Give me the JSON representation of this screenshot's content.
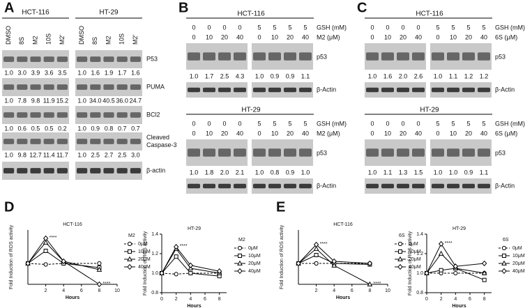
{
  "panel_labels": [
    "A",
    "B",
    "C",
    "D",
    "E"
  ],
  "panel_a": {
    "groups": [
      {
        "title": "HCT-116",
        "lanes": [
          "DMSO",
          "8S",
          "M2",
          "10S",
          "M2'"
        ]
      },
      {
        "title": "HT-29",
        "lanes": [
          "DMSO",
          "8S",
          "M2",
          "10S",
          "M2'"
        ]
      }
    ],
    "rows": [
      {
        "label": [
          "P53"
        ],
        "values": [
          [
            "1.0",
            "3.0",
            "3.9",
            "3.6",
            "3.5"
          ],
          [
            "1.0",
            "1.6",
            "1.9",
            "1.7",
            "1.6"
          ]
        ]
      },
      {
        "label": [
          "PUMA"
        ],
        "values": [
          [
            "1.0",
            "7.8",
            "9.8",
            "11.9",
            "15.2"
          ],
          [
            "1.0",
            "34.0",
            "40.5",
            "36.0",
            "24.7"
          ]
        ]
      },
      {
        "label": [
          "BCl2"
        ],
        "values": [
          [
            "1.0",
            "0.6",
            "0.5",
            "0.5",
            "0.2"
          ],
          [
            "1.0",
            "0.9",
            "0.8",
            "0.7",
            "0.7"
          ]
        ]
      },
      {
        "label": [
          "Cleaved",
          "Caspase-3"
        ],
        "values": [
          [
            "1.0",
            "9.8",
            "12.7",
            "11.4",
            "11.7"
          ],
          [
            "1.0",
            "2.5",
            "2.7",
            "2.5",
            "3.0"
          ]
        ]
      },
      {
        "label": [
          "β-actin"
        ]
      }
    ]
  },
  "panel_b": {
    "row_labels": [
      "GSH (mM)",
      "M2 (μM)",
      "p53",
      "β-Actin"
    ],
    "blocks": [
      {
        "title": "HCT-116",
        "gsh": [
          "0",
          "0",
          "0",
          "0",
          "5",
          "5",
          "5",
          "5"
        ],
        "treat": [
          "0",
          "10",
          "20",
          "40",
          "0",
          "10",
          "20",
          "40"
        ],
        "values": [
          "1.0",
          "1.7",
          "2.5",
          "4.3",
          "1.0",
          "0.9",
          "0.9",
          "1.1"
        ]
      },
      {
        "title": "HT-29",
        "gsh": [
          "0",
          "0",
          "0",
          "0",
          "5",
          "5",
          "5",
          "5"
        ],
        "treat": [
          "0",
          "10",
          "20",
          "40",
          "0",
          "10",
          "20",
          "40"
        ],
        "values": [
          "1.0",
          "1.8",
          "2.0",
          "2.1",
          "1.0",
          "0.8",
          "0.9",
          "1.0"
        ]
      }
    ]
  },
  "panel_c": {
    "row_labels": [
      "GSH (mM)",
      "6S (μM)",
      "p53",
      "β-Actin"
    ],
    "blocks": [
      {
        "title": "HCT-116",
        "gsh": [
          "0",
          "0",
          "0",
          "0",
          "5",
          "5",
          "5",
          "5"
        ],
        "treat": [
          "0",
          "10",
          "20",
          "40",
          "0",
          "10",
          "20",
          "40"
        ],
        "values": [
          "1.0",
          "1.6",
          "2.0",
          "2.6",
          "1.0",
          "1.1",
          "1.2",
          "1.2"
        ]
      },
      {
        "title": "HT-29",
        "gsh": [
          "0",
          "0",
          "0",
          "0",
          "5",
          "5",
          "5",
          "5"
        ],
        "treat": [
          "0",
          "10",
          "20",
          "40",
          "0",
          "10",
          "20",
          "40"
        ],
        "values": [
          "1.0",
          "1.1",
          "1.3",
          "1.5",
          "1.0",
          "1.0",
          "0.9",
          "1.1"
        ]
      }
    ]
  },
  "chart_data": [
    {
      "type": "line",
      "title": "HCT-116",
      "legend_title": "M2",
      "xlabel": "Hours",
      "ylabel": "Fold Induction of ROS activity",
      "x": [
        0,
        2,
        4,
        8
      ],
      "xlim": [
        0,
        10
      ],
      "xticks": [
        2,
        4,
        6,
        8,
        10
      ],
      "ylim": [
        0,
        2.6
      ],
      "series": [
        {
          "name": "0μM",
          "color": "#000000",
          "marker": "circle",
          "dash": true,
          "values": [
            1.0,
            0.95,
            1.0,
            1.0
          ]
        },
        {
          "name": "10μM",
          "color": "#000000",
          "marker": "square",
          "dash": false,
          "values": [
            1.0,
            1.6,
            1.0,
            0.8
          ]
        },
        {
          "name": "20μM",
          "color": "#000000",
          "marker": "triangle",
          "dash": false,
          "values": [
            1.0,
            2.0,
            1.1,
            0.7
          ]
        },
        {
          "name": "40μM",
          "color": "#000000",
          "marker": "diamond",
          "dash": false,
          "values": [
            1.0,
            2.2,
            1.1,
            0.0
          ]
        }
      ],
      "annotations": [
        "****",
        "****"
      ]
    },
    {
      "type": "line",
      "title": "HT-29",
      "legend_title": "M2",
      "xlabel": "Hours",
      "ylabel": "Fold Induction of ROS activity",
      "x": [
        0,
        2,
        4,
        8
      ],
      "xlim": [
        0,
        9
      ],
      "xticks": [
        0,
        2,
        4,
        6,
        8
      ],
      "ylim": [
        0.8,
        1.4
      ],
      "yticks": [
        0.8,
        {
          "value": 1,
          "label": "1.0"
        },
        1.2,
        1.4
      ],
      "series": [
        {
          "name": "0μM",
          "color": "#000000",
          "marker": "circle",
          "dash": true,
          "values": [
            1.0,
            0.99,
            1.0,
            1.0
          ]
        },
        {
          "name": "10μM",
          "color": "#000000",
          "marker": "square",
          "dash": false,
          "values": [
            1.0,
            1.17,
            1.0,
            0.97
          ]
        },
        {
          "name": "20μM",
          "color": "#000000",
          "marker": "triangle",
          "dash": false,
          "values": [
            1.0,
            1.25,
            1.05,
            1.0
          ]
        },
        {
          "name": "40μM",
          "color": "#000000",
          "marker": "diamond",
          "dash": false,
          "values": [
            1.0,
            1.27,
            1.08,
            1.02
          ]
        }
      ],
      "annotations": [
        "****"
      ]
    },
    {
      "type": "line",
      "title": "HCT-116",
      "legend_title": "6S",
      "xlabel": "Hours",
      "ylabel": "Fold Induction of ROS activity",
      "x": [
        0,
        2,
        4,
        8
      ],
      "xlim": [
        0,
        10
      ],
      "xticks": [
        2,
        4,
        6,
        8,
        10
      ],
      "ylim": [
        0,
        2.6
      ],
      "series": [
        {
          "name": "0μM",
          "color": "#000000",
          "marker": "circle",
          "dash": true,
          "values": [
            1.0,
            1.0,
            1.0,
            1.0
          ]
        },
        {
          "name": "10μM",
          "color": "#000000",
          "marker": "square",
          "dash": false,
          "values": [
            1.0,
            1.4,
            1.0,
            0.95
          ]
        },
        {
          "name": "20μM",
          "color": "#000000",
          "marker": "triangle",
          "dash": false,
          "values": [
            1.0,
            1.7,
            0.9,
            0.0
          ]
        },
        {
          "name": "40μM",
          "color": "#000000",
          "marker": "diamond",
          "dash": false,
          "values": [
            1.0,
            1.9,
            1.1,
            1.0
          ]
        }
      ],
      "annotations": [
        "****",
        "****"
      ]
    },
    {
      "type": "line",
      "title": "HT-29",
      "legend_title": "6S",
      "xlabel": "Hours",
      "ylabel": "Fold Induction of ROS activity",
      "x": [
        0,
        2,
        4,
        8
      ],
      "xlim": [
        0,
        9
      ],
      "xticks": [
        0,
        2,
        4,
        6,
        8
      ],
      "ylim": [
        0.8,
        1.4
      ],
      "yticks": [
        0.8,
        {
          "value": 1,
          "label": "1.0"
        },
        1.2,
        1.4
      ],
      "series": [
        {
          "name": "0μM",
          "color": "#000000",
          "marker": "circle",
          "dash": true,
          "values": [
            1.0,
            1.0,
            1.0,
            1.0
          ]
        },
        {
          "name": "10μM",
          "color": "#000000",
          "marker": "square",
          "dash": false,
          "values": [
            1.0,
            1.03,
            1.05,
            0.93
          ]
        },
        {
          "name": "20μM",
          "color": "#000000",
          "marker": "triangle",
          "dash": false,
          "values": [
            1.0,
            1.2,
            1.05,
            1.0
          ]
        },
        {
          "name": "40μM",
          "color": "#000000",
          "marker": "diamond",
          "dash": false,
          "values": [
            1.0,
            1.3,
            1.07,
            1.1
          ]
        }
      ],
      "annotations": [
        "****"
      ]
    }
  ]
}
